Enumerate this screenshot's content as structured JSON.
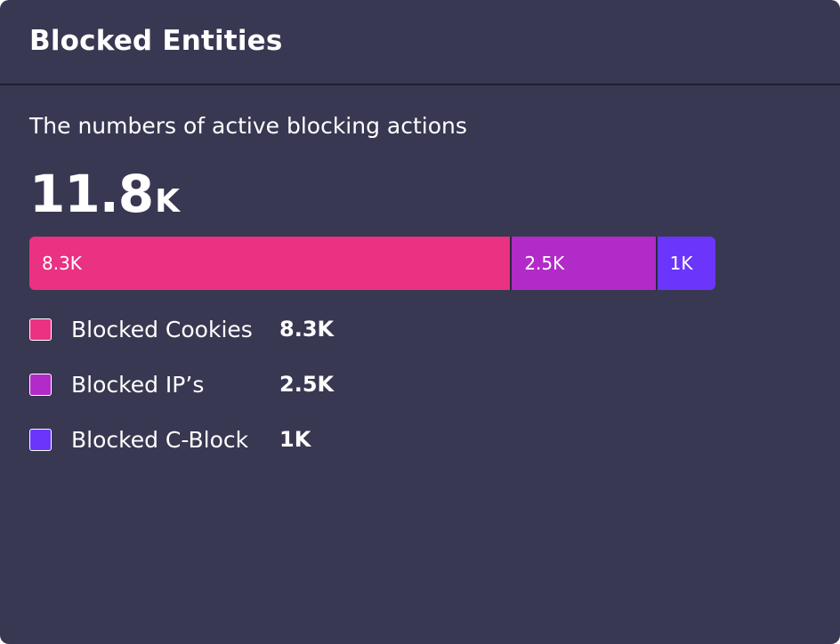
{
  "card": {
    "title": "Blocked Entities",
    "subtitle": "The numbers of active blocking actions",
    "total_value": "11.8",
    "total_unit": "K"
  },
  "chart_data": {
    "type": "bar",
    "orientation": "horizontal-stacked",
    "title": "The numbers of active blocking actions",
    "total": 11800,
    "max": 11800,
    "categories": [
      "Blocked Cookies",
      "Blocked IP’s",
      "Blocked C-Block"
    ],
    "values": [
      8300,
      2500,
      1000
    ],
    "labels": [
      "8.3K",
      "2.5K",
      "1K"
    ],
    "colors": [
      "#ea3182",
      "#b22ac8",
      "#6b35fb"
    ]
  },
  "legend": [
    {
      "label": "Blocked Cookies",
      "value": "8.3K",
      "color": "#ea3182"
    },
    {
      "label": "Blocked IP’s",
      "value": "2.5K",
      "color": "#b22ac8"
    },
    {
      "label": "Blocked C-Block",
      "value": "1K",
      "color": "#6b35fb"
    }
  ]
}
